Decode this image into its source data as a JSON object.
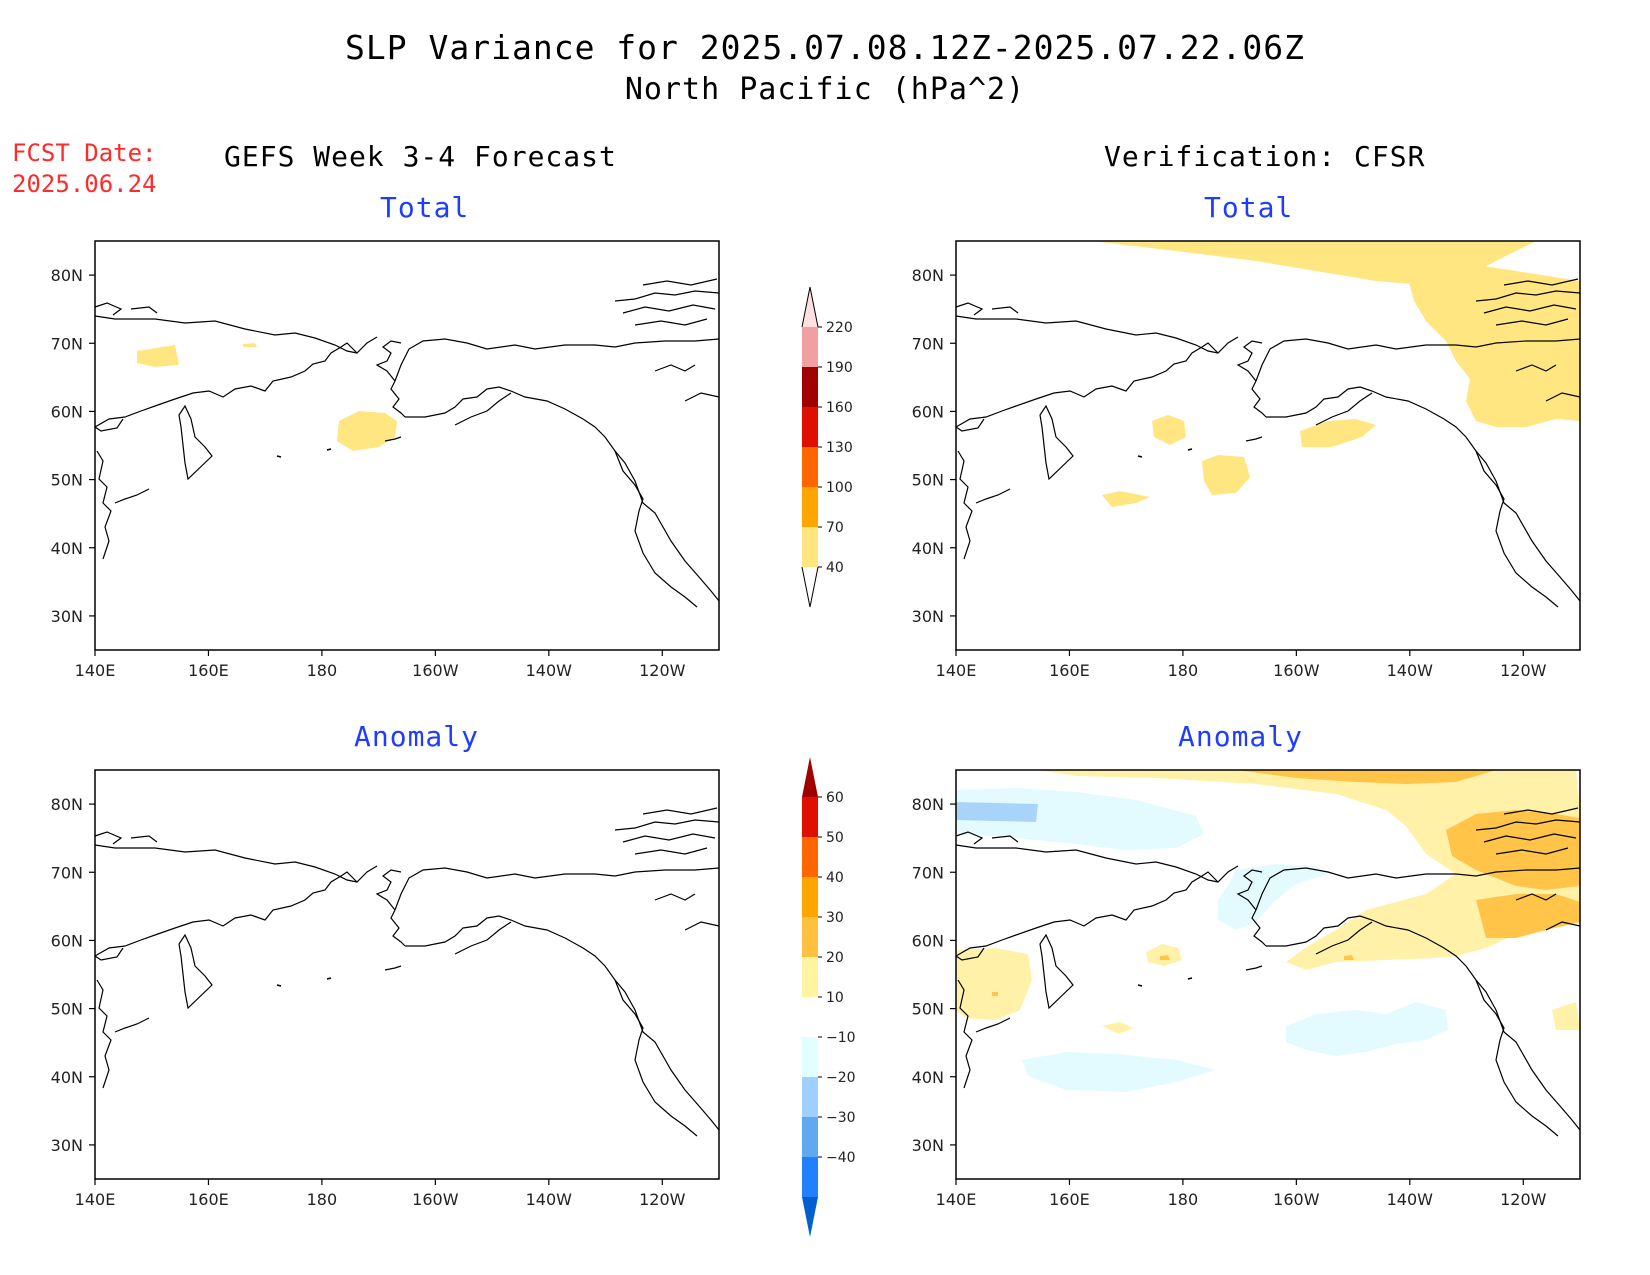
{
  "title": "SLP Variance for 2025.07.08.12Z-2025.07.22.06Z",
  "subtitle": "North Pacific (hPa^2)",
  "fcst_date_label": "FCST Date:",
  "fcst_date": "2025.06.24",
  "columns": [
    {
      "heading": "GEFS Week 3-4 Forecast"
    },
    {
      "heading": "Verification: CFSR"
    }
  ],
  "rows": [
    {
      "label": "Total"
    },
    {
      "label": "Anomaly"
    }
  ],
  "map": {
    "lat_ticks": [
      "80N",
      "70N",
      "60N",
      "50N",
      "40N",
      "30N"
    ],
    "lon_ticks": [
      "140E",
      "160E",
      "180",
      "160W",
      "140W",
      "120W"
    ],
    "lat_values": [
      80,
      70,
      60,
      50,
      40,
      30
    ],
    "lon_values": [
      140,
      160,
      180,
      200,
      220,
      240
    ],
    "lon_range": [
      140,
      250
    ],
    "lat_range": [
      25,
      85
    ]
  },
  "colorbars": {
    "total": {
      "levels": [
        "40",
        "70",
        "100",
        "130",
        "160",
        "190",
        "220"
      ],
      "colors": [
        "#ffe680",
        "#ffa500",
        "#ff6600",
        "#e01000",
        "#a00000",
        "#f0a0a0",
        "#ffe0e0"
      ]
    },
    "anomaly": {
      "levels": [
        "60",
        "50",
        "40",
        "30",
        "20",
        "10",
        "-10",
        "-20",
        "-30",
        "-40"
      ],
      "colors": [
        "#a00000",
        "#e01000",
        "#ff6600",
        "#ffa500",
        "#ffc040",
        "#fff5a0",
        "#ffffff",
        "#e0ffff",
        "#a0d0ff",
        "#60a8f0",
        "#2080ff",
        "#0060d0"
      ]
    },
    "palette": {
      "light_yellow": "#ffe680",
      "anom_yellow": "#fff2a8",
      "anom_orange": "#ffc448",
      "anom_dark_orange": "#f6a21e",
      "anom_cyan": "#e3fbff",
      "anom_blue": "#a8d4fa"
    }
  }
}
